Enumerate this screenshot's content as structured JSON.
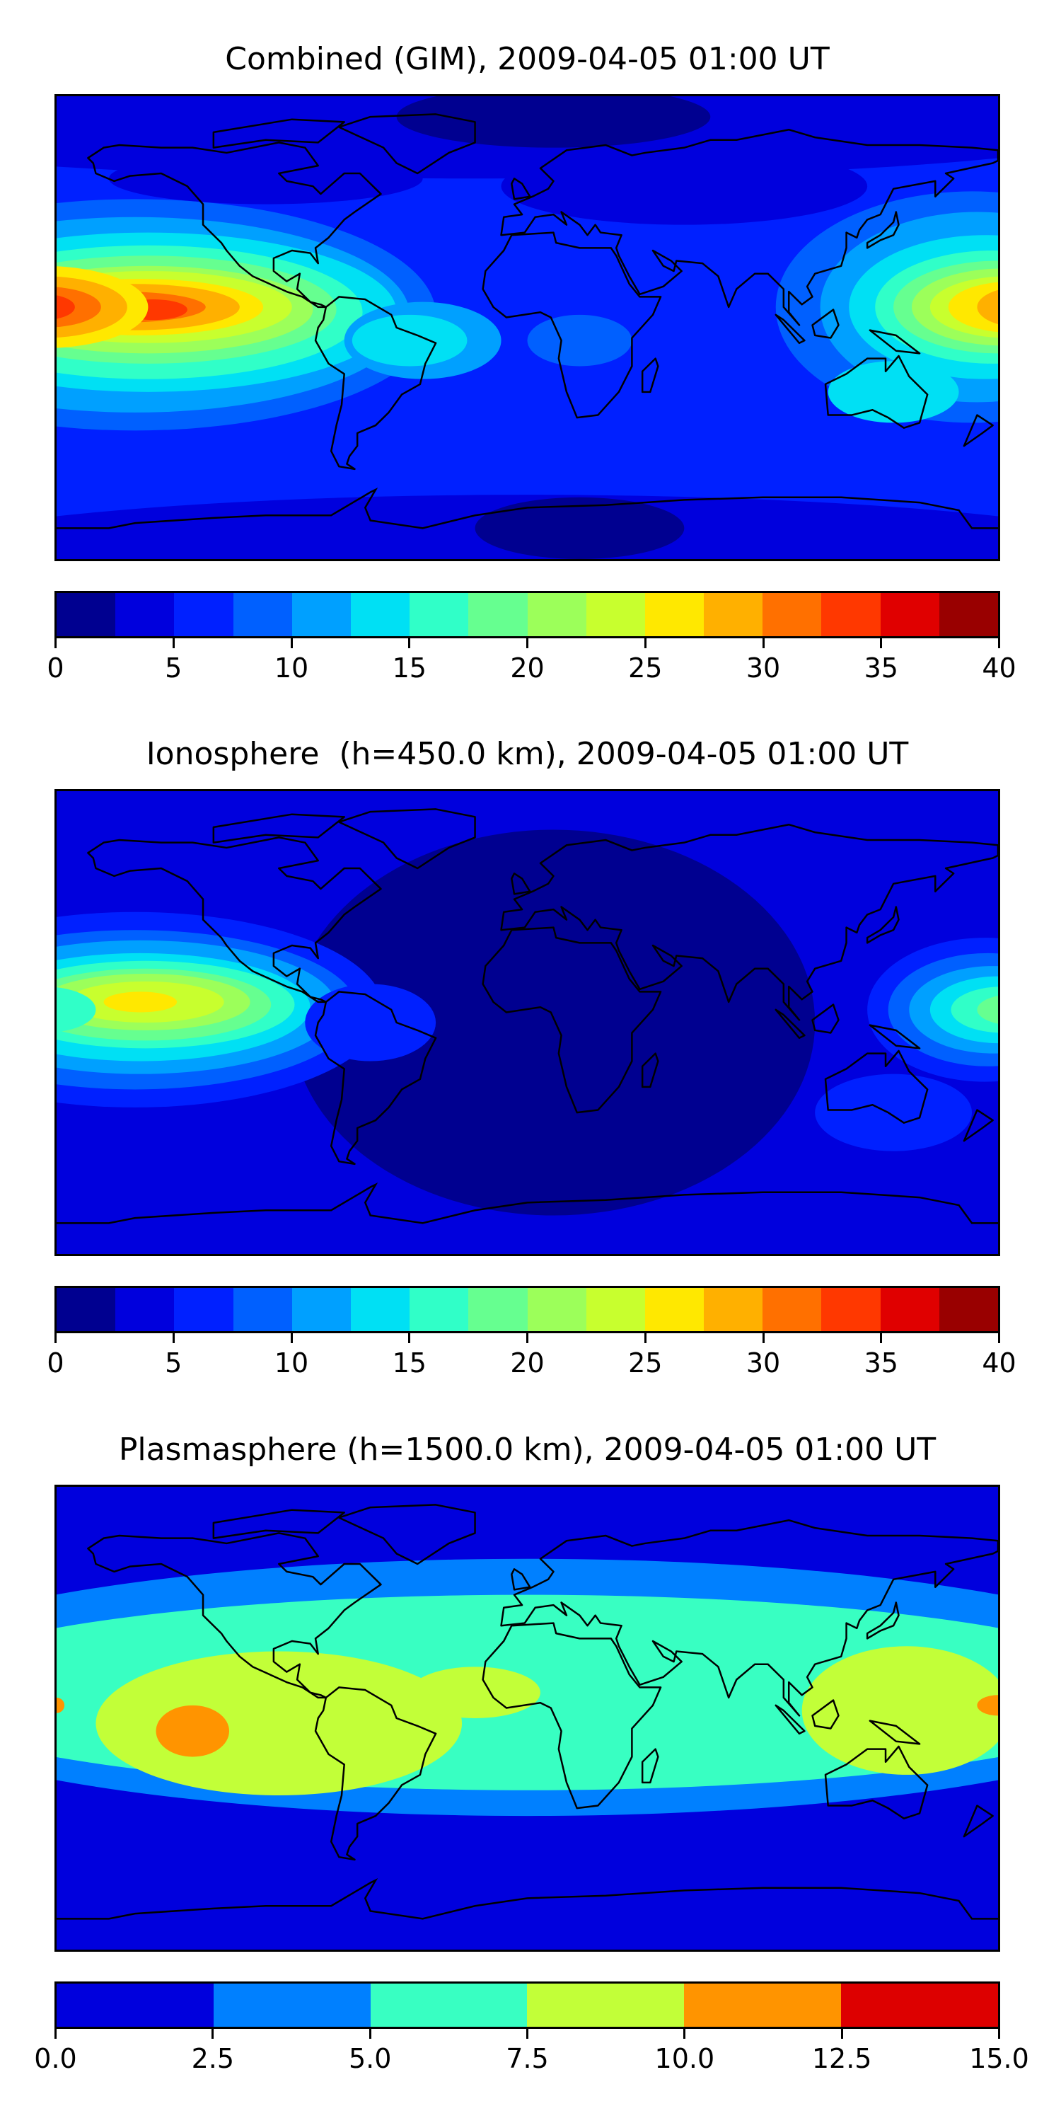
{
  "chart_data": [
    {
      "type": "heatmap",
      "title": "Combined (GIM), 2009-04-05 01:00 UT",
      "projection": "plate-carree world map with coastlines",
      "levels": [
        0,
        2.5,
        5,
        7.5,
        10,
        12.5,
        15,
        17.5,
        20,
        22.5,
        25,
        27.5,
        30,
        32.5,
        35,
        37.5,
        40
      ],
      "colors": [
        "#000090",
        "#0000dd",
        "#0020ff",
        "#0060ff",
        "#00a0ff",
        "#00e0f4",
        "#30ffc8",
        "#66ff90",
        "#9cff5a",
        "#c8ff2e",
        "#ffe800",
        "#ffb000",
        "#ff7000",
        "#ff3800",
        "#e00000",
        "#990000"
      ],
      "colorbar_ticks": [
        "0",
        "5",
        "10",
        "15",
        "20",
        "25",
        "30",
        "35",
        "40"
      ],
      "colorbar_tick_values": [
        0,
        5,
        10,
        15,
        20,
        25,
        30,
        35,
        40
      ],
      "vmin": 0,
      "vmax": 40,
      "features": {
        "max_region": "central Pacific near equator (~32.5-35)",
        "secondary_max": "western Pacific east of Indonesia (~27.5-32.5)",
        "min_regions": "North Atlantic and Antarctica (0-2.5)"
      }
    },
    {
      "type": "heatmap",
      "title": "Ionosphere  (h=450.0 km), 2009-04-05 01:00 UT",
      "projection": "plate-carree world map with coastlines",
      "levels": [
        0,
        2.5,
        5,
        7.5,
        10,
        12.5,
        15,
        17.5,
        20,
        22.5,
        25,
        27.5,
        30,
        32.5,
        35,
        37.5,
        40
      ],
      "colors": [
        "#000090",
        "#0000dd",
        "#0020ff",
        "#0060ff",
        "#00a0ff",
        "#00e0f4",
        "#30ffc8",
        "#66ff90",
        "#9cff5a",
        "#c8ff2e",
        "#ffe800",
        "#ffb000",
        "#ff7000",
        "#ff3800",
        "#e00000",
        "#990000"
      ],
      "colorbar_ticks": [
        "0",
        "5",
        "10",
        "15",
        "20",
        "25",
        "30",
        "35",
        "40"
      ],
      "colorbar_tick_values": [
        0,
        5,
        10,
        15,
        20,
        25,
        30,
        35,
        40
      ],
      "vmin": 0,
      "vmax": 40,
      "features": {
        "max_region": "central Pacific near equator (~25-27.5)",
        "secondary_max": "western Pacific (~17.5-20)",
        "min_regions": "Atlantic, Africa, Indian Ocean (0-2.5)"
      }
    },
    {
      "type": "heatmap",
      "title": "Plasmasphere (h=1500.0 km), 2009-04-05 01:00 UT",
      "projection": "plate-carree world map with coastlines",
      "levels": [
        0,
        2.5,
        5,
        7.5,
        10,
        12.5,
        15
      ],
      "colors": [
        "#0000dd",
        "#0080ff",
        "#38ffc2",
        "#c2ff38",
        "#ff9400",
        "#dd0000"
      ],
      "colorbar_ticks": [
        "0.0",
        "2.5",
        "5.0",
        "7.5",
        "10.0",
        "12.5",
        "15.0"
      ],
      "colorbar_tick_values": [
        0,
        2.5,
        5,
        7.5,
        10,
        12.5,
        15
      ],
      "vmin": 0,
      "vmax": 15,
      "features": {
        "max_region": "eastern Pacific and west Pacific dateline (10-12.5)",
        "low_regions": "high latitudes (0-2.5)"
      }
    }
  ]
}
